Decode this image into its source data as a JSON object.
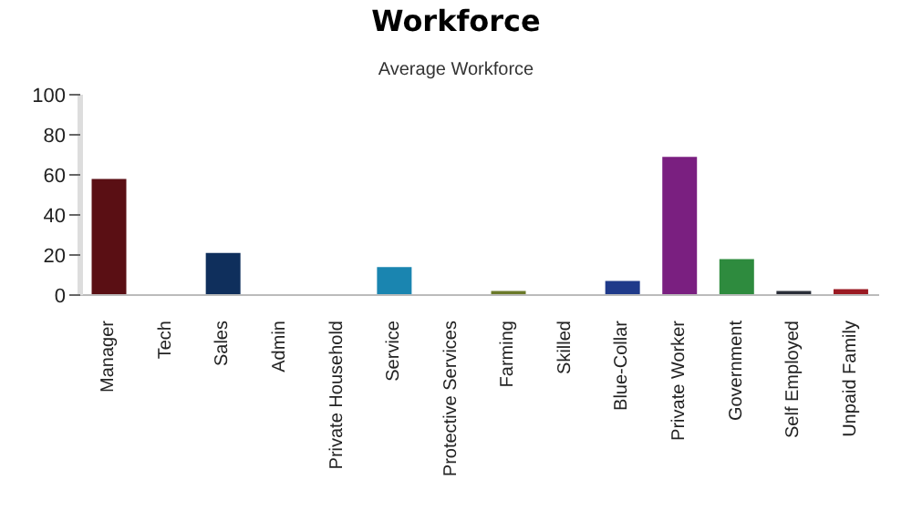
{
  "chart_data": {
    "type": "bar",
    "title": "Workforce",
    "subtitle": "Average Workforce",
    "categories": [
      "Manager",
      "Tech",
      "Sales",
      "Admin",
      "Private Household",
      "Service",
      "Protective Services",
      "Farming",
      "Skilled",
      "Blue-Collar",
      "Private Worker",
      "Government",
      "Self Employed",
      "Unpaid Family"
    ],
    "values": [
      58,
      0,
      21,
      0,
      0,
      14,
      0,
      2,
      0,
      7,
      69,
      18,
      2,
      3
    ],
    "colors": [
      "#5a0f14",
      "#6a6a6a",
      "#0f2f5c",
      "#6a6a6a",
      "#6a6a6a",
      "#1a85b0",
      "#6a6a6a",
      "#6b7a2a",
      "#6a6a6a",
      "#1f3a8a",
      "#7a1f80",
      "#2e8b3e",
      "#2a2e38",
      "#9a1a22"
    ],
    "ylim": [
      0,
      100
    ],
    "yticks": [
      0,
      20,
      40,
      60,
      80,
      100
    ],
    "grid": false
  }
}
